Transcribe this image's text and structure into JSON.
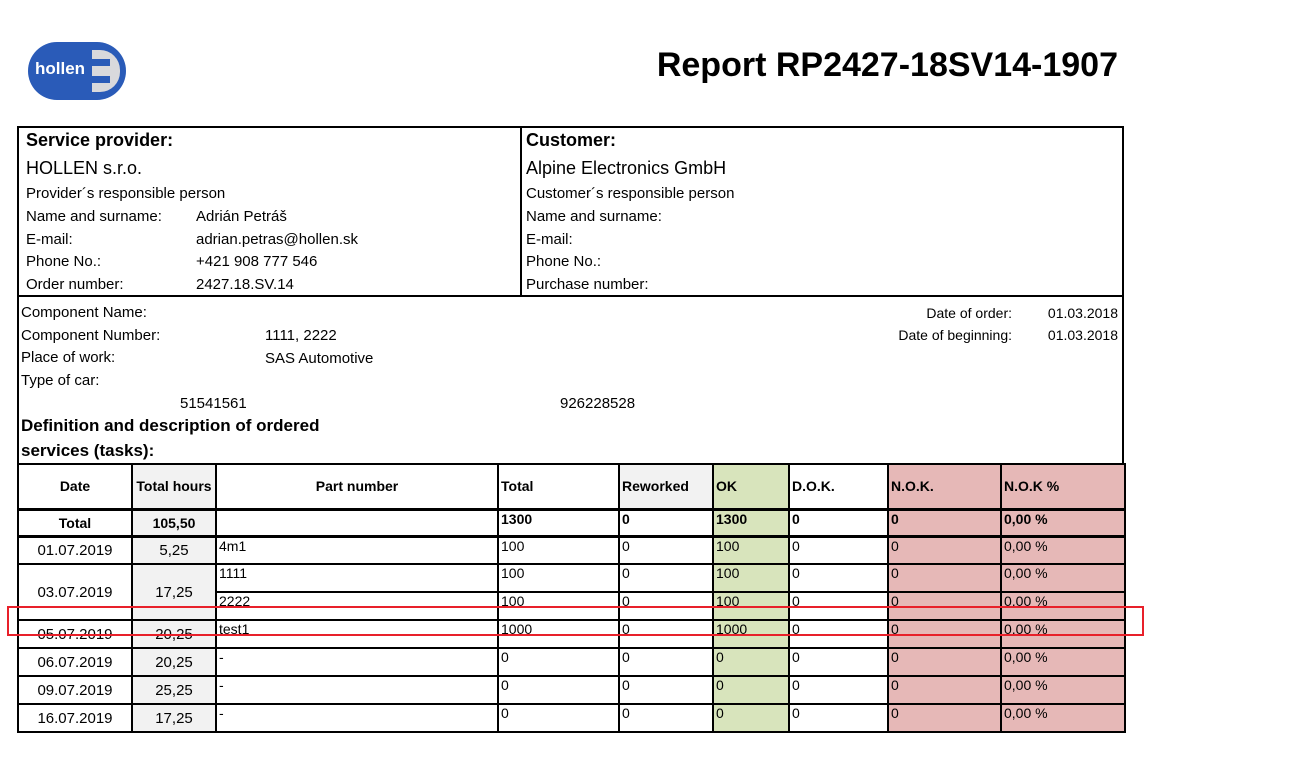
{
  "logo": {
    "text": "hollen",
    "color": "#2a5bb8"
  },
  "title": "Report RP2427-18SV14-1907",
  "provider": {
    "heading": "Service provider:",
    "company": "HOLLEN s.r.o.",
    "person_label": "Provider´s responsible person",
    "fields": [
      {
        "label": "Name and surname:",
        "value": "Adrián Petráš"
      },
      {
        "label": "E-mail:",
        "value": "adrian.petras@hollen.sk"
      },
      {
        "label": "Phone No.:",
        "value": "+421 908 777 546"
      },
      {
        "label": "Order number:",
        "value": "2427.18.SV.14"
      }
    ]
  },
  "customer": {
    "heading": "Customer:",
    "company": "Alpine Electronics GmbH",
    "person_label": "Customer´s responsible person",
    "fields": [
      {
        "label": "Name and surname:",
        "value": ""
      },
      {
        "label": "E-mail:",
        "value": ""
      },
      {
        "label": "Phone No.:",
        "value": ""
      },
      {
        "label": "Purchase number:",
        "value": ""
      }
    ]
  },
  "component": {
    "fields": [
      {
        "label": "Component Name:",
        "value": ""
      },
      {
        "label": "Component Number:",
        "value": "1111, 2222"
      },
      {
        "label": "Place of work:",
        "value": "SAS Automotive"
      },
      {
        "label": "Type of car:",
        "value": ""
      }
    ],
    "extra1": "51541561",
    "extra2": "926228528",
    "date_of_order_label": "Date of order:",
    "date_of_order": "01.03.2018",
    "date_of_beginning_label": "Date of beginning:",
    "date_of_beginning": "01.03.2018"
  },
  "section_heading_1": "Definition and description of ordered",
  "section_heading_2": "services (tasks):",
  "table": {
    "headers": [
      "Date",
      "Total hours",
      "Part number",
      "Total",
      "Reworked",
      "OK",
      "D.O.K.",
      "N.O.K.",
      "N.O.K %"
    ],
    "total": [
      "Total",
      "105,50",
      "",
      "1300",
      "0",
      "1300",
      "0",
      "0",
      "0,00 %"
    ],
    "rows": [
      {
        "date": "01.07.2019",
        "hours": "5,25",
        "parts": [
          [
            "4m1",
            "100",
            "0",
            "100",
            "0",
            "0",
            "0,00 %"
          ]
        ]
      },
      {
        "date": "03.07.2019",
        "hours": "17,25",
        "parts": [
          [
            "1111",
            "100",
            "0",
            "100",
            "0",
            "0",
            "0,00 %"
          ],
          [
            "2222",
            "100",
            "0",
            "100",
            "0",
            "0",
            "0,00 %"
          ]
        ]
      },
      {
        "date": "05.07.2019",
        "hours": "20,25",
        "parts": [
          [
            "test1",
            "1000",
            "0",
            "1000",
            "0",
            "0",
            "0,00 %"
          ]
        ]
      },
      {
        "date": "06.07.2019",
        "hours": "20,25",
        "parts": [
          [
            "-",
            "0",
            "0",
            "0",
            "0",
            "0",
            "0,00 %"
          ]
        ]
      },
      {
        "date": "09.07.2019",
        "hours": "25,25",
        "parts": [
          [
            "-",
            "0",
            "0",
            "0",
            "0",
            "0",
            "0,00 %"
          ]
        ]
      },
      {
        "date": "16.07.2019",
        "hours": "17,25",
        "parts": [
          [
            "-",
            "0",
            "0",
            "0",
            "0",
            "0",
            "0,00 %"
          ]
        ]
      }
    ]
  },
  "colors": {
    "ok": "#d8e4bc",
    "nok": "#e6b8b7",
    "hours": "#f2f2f2",
    "highlight": "#e8202a"
  }
}
